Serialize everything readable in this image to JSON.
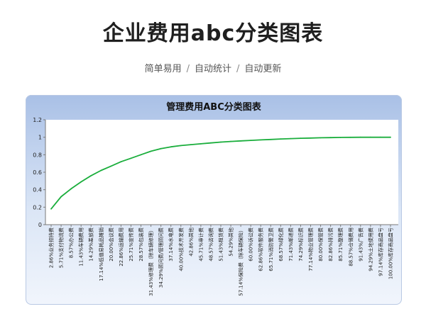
{
  "header": {
    "title": "企业费用abc分类图表",
    "tags": [
      "简单易用",
      "自动统计",
      "自动更新"
    ],
    "separator": "/"
  },
  "colors": {
    "line": "#1aae3c",
    "panel_top": "#a9c0e6",
    "plot_bg": "#ffffff"
  },
  "chart_data": {
    "type": "line",
    "title": "管理费用ABC分类图表",
    "ylim": [
      0,
      1.2
    ],
    "yticks": [
      0,
      0.2,
      0.4,
      0.6,
      0.8,
      1,
      1.2
    ],
    "grid": false,
    "legend": "none",
    "categories": [
      "2.86%业务招待费",
      "5.71%支付物流费",
      "8.57%办公费",
      "11.43%车辆费用",
      "14.29%差旅费",
      "17.14%低值易耗品摊销",
      "20.00%会议费",
      "22.86%运输费用",
      "25.71%宣传费",
      "28.57%包装费",
      "31.43%修理费（除车辆修理）",
      "34.29%顾问费/管理顾问费",
      "37.14%水电费",
      "40.00%技术开发费",
      "42.86%其他",
      "45.71%审计费",
      "48.57%咨询费",
      "51.43%租赁费",
      "54.29%其他",
      "57.14%保险费（除车辆保险）",
      "60.00%诉讼费",
      "62.86%软件服务费",
      "65.71%消防警卫费",
      "68.57%绿化费",
      "71.43%邮递费",
      "74.29%标识费",
      "77.14%物业管理费",
      "80.00%保管费",
      "82.86%排污费",
      "85.71%整理费",
      "88.57%仓储费用",
      "91.43%广告费",
      "94.29%土地使用费",
      "97.14%库存商品盘亏",
      "100.00%库存商品盘亏"
    ],
    "values": [
      0.18,
      0.32,
      0.41,
      0.49,
      0.56,
      0.62,
      0.67,
      0.72,
      0.76,
      0.8,
      0.84,
      0.87,
      0.89,
      0.905,
      0.915,
      0.925,
      0.935,
      0.945,
      0.952,
      0.958,
      0.964,
      0.97,
      0.975,
      0.98,
      0.984,
      0.988,
      0.991,
      0.994,
      0.996,
      0.998,
      0.999,
      1.0,
      1.0,
      1.0,
      1.0
    ]
  }
}
